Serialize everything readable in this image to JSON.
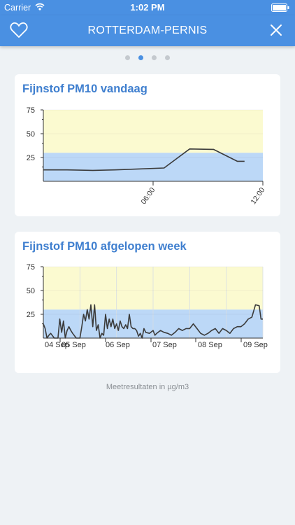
{
  "status_bar": {
    "carrier": "Carrier",
    "time": "1:02 PM"
  },
  "nav": {
    "title": "ROTTERDAM-PERNIS",
    "accent_color": "#4a90e2",
    "left_icon": "heart-icon",
    "right_icon": "close-icon"
  },
  "pager": {
    "count": 4,
    "active_index": 1
  },
  "footer": {
    "note": "Meetresultaten in µg/m3"
  },
  "chart_data": [
    {
      "type": "line",
      "title": "Fijnstof PM10 vandaag",
      "ylim": [
        0,
        75
      ],
      "yticks": [
        "75",
        "50",
        "25"
      ],
      "x_domain_hours": [
        0,
        12
      ],
      "xtick_labels": [
        "06:00",
        "12:00"
      ],
      "bands": [
        {
          "from": 0,
          "to": 30,
          "color": "#bcd8f7"
        },
        {
          "from": 30,
          "to": 75,
          "color": "#fbfad0"
        }
      ],
      "series": [
        {
          "x": [
            0,
            1.3,
            2.7,
            3.9,
            5.3,
            6.6,
            8.0,
            9.3,
            10.6,
            11.0
          ],
          "values": [
            12,
            12,
            11.5,
            12,
            13,
            14,
            34,
            33.5,
            21,
            21
          ]
        }
      ]
    },
    {
      "type": "line",
      "title": "Fijnstof PM10 afgelopen week",
      "ylim": [
        0,
        75
      ],
      "yticks": [
        "75",
        "50",
        "25"
      ],
      "x_domain_days": [
        0,
        6
      ],
      "xtick_labels": [
        "04 Sep",
        "05 Sep",
        "06 Sep",
        "07 Sep",
        "08 Sep",
        "09 Sep"
      ],
      "bands": [
        {
          "from": 0,
          "to": 30,
          "color": "#bcd8f7"
        },
        {
          "from": 30,
          "to": 75,
          "color": "#fbfad0"
        }
      ],
      "series": [
        {
          "x": [
            0.0,
            0.05,
            0.1,
            0.15,
            0.2,
            0.3,
            0.4,
            0.45,
            0.5,
            0.55,
            0.6,
            0.65,
            0.7,
            0.75,
            0.8,
            0.9,
            1.0,
            1.05,
            1.1,
            1.15,
            1.2,
            1.25,
            1.3,
            1.35,
            1.4,
            1.45,
            1.5,
            1.55,
            1.6,
            1.65,
            1.7,
            1.75,
            1.8,
            1.85,
            1.9,
            1.95,
            2.0,
            2.05,
            2.1,
            2.15,
            2.2,
            2.25,
            2.3,
            2.35,
            2.4,
            2.45,
            2.5,
            2.55,
            2.6,
            2.65,
            2.7,
            2.75,
            2.8,
            2.9,
            3.0,
            3.05,
            3.1,
            3.2,
            3.3,
            3.4,
            3.5,
            3.6,
            3.7,
            3.8,
            3.9,
            4.0,
            4.1,
            4.2,
            4.3,
            4.4,
            4.5,
            4.6,
            4.7,
            4.8,
            4.9,
            5.0,
            5.1,
            5.2,
            5.3,
            5.4,
            5.5,
            5.6,
            5.7,
            5.8,
            5.9,
            5.95,
            6.0
          ],
          "values": [
            15,
            10,
            0,
            3,
            5,
            0,
            0,
            20,
            6,
            18,
            0,
            8,
            12,
            8,
            5,
            0,
            0,
            12,
            25,
            18,
            30,
            20,
            35,
            12,
            35,
            8,
            14,
            0,
            5,
            3,
            25,
            10,
            20,
            12,
            20,
            10,
            15,
            8,
            18,
            12,
            10,
            14,
            10,
            25,
            12,
            10,
            10,
            8,
            2,
            5,
            0,
            10,
            6,
            5,
            8,
            3,
            5,
            8,
            6,
            5,
            3,
            6,
            10,
            8,
            10,
            10,
            15,
            10,
            5,
            3,
            5,
            8,
            10,
            5,
            10,
            8,
            5,
            10,
            12,
            12,
            15,
            20,
            22,
            35,
            34,
            20,
            20
          ]
        }
      ]
    }
  ]
}
